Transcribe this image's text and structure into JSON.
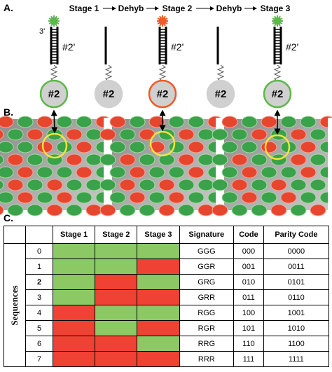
{
  "panel_a": {
    "label": "A.",
    "stages": [
      "Stage 1",
      "Dehyb",
      "Stage 2",
      "Dehyb",
      "Stage 3"
    ],
    "end_label": "3'",
    "bead_label": "#2",
    "probe_label": "#2'"
  },
  "panel_b": {
    "label": "B."
  },
  "panel_c": {
    "label": "C.",
    "axis_label": "Sequences",
    "columns": [
      "Stage 1",
      "Stage 2",
      "Stage 3",
      "Signature",
      "Code",
      "Parity Code"
    ],
    "cell_colors": {
      "G": "#8cc965",
      "R": "#ef4134"
    },
    "rows": [
      [
        "0",
        "GGG",
        "000",
        "0000"
      ],
      [
        "1",
        "GGR",
        "001",
        "0011"
      ],
      [
        "2",
        "GRG",
        "010",
        "0101"
      ],
      [
        "3",
        "GRR",
        "011",
        "0110"
      ],
      [
        "4",
        "RGG",
        "100",
        "1001"
      ],
      [
        "5",
        "RGR",
        "101",
        "1010"
      ],
      [
        "6",
        "RRG",
        "110",
        "1100"
      ],
      [
        "7",
        "RRR",
        "111",
        "1111"
      ]
    ]
  }
}
